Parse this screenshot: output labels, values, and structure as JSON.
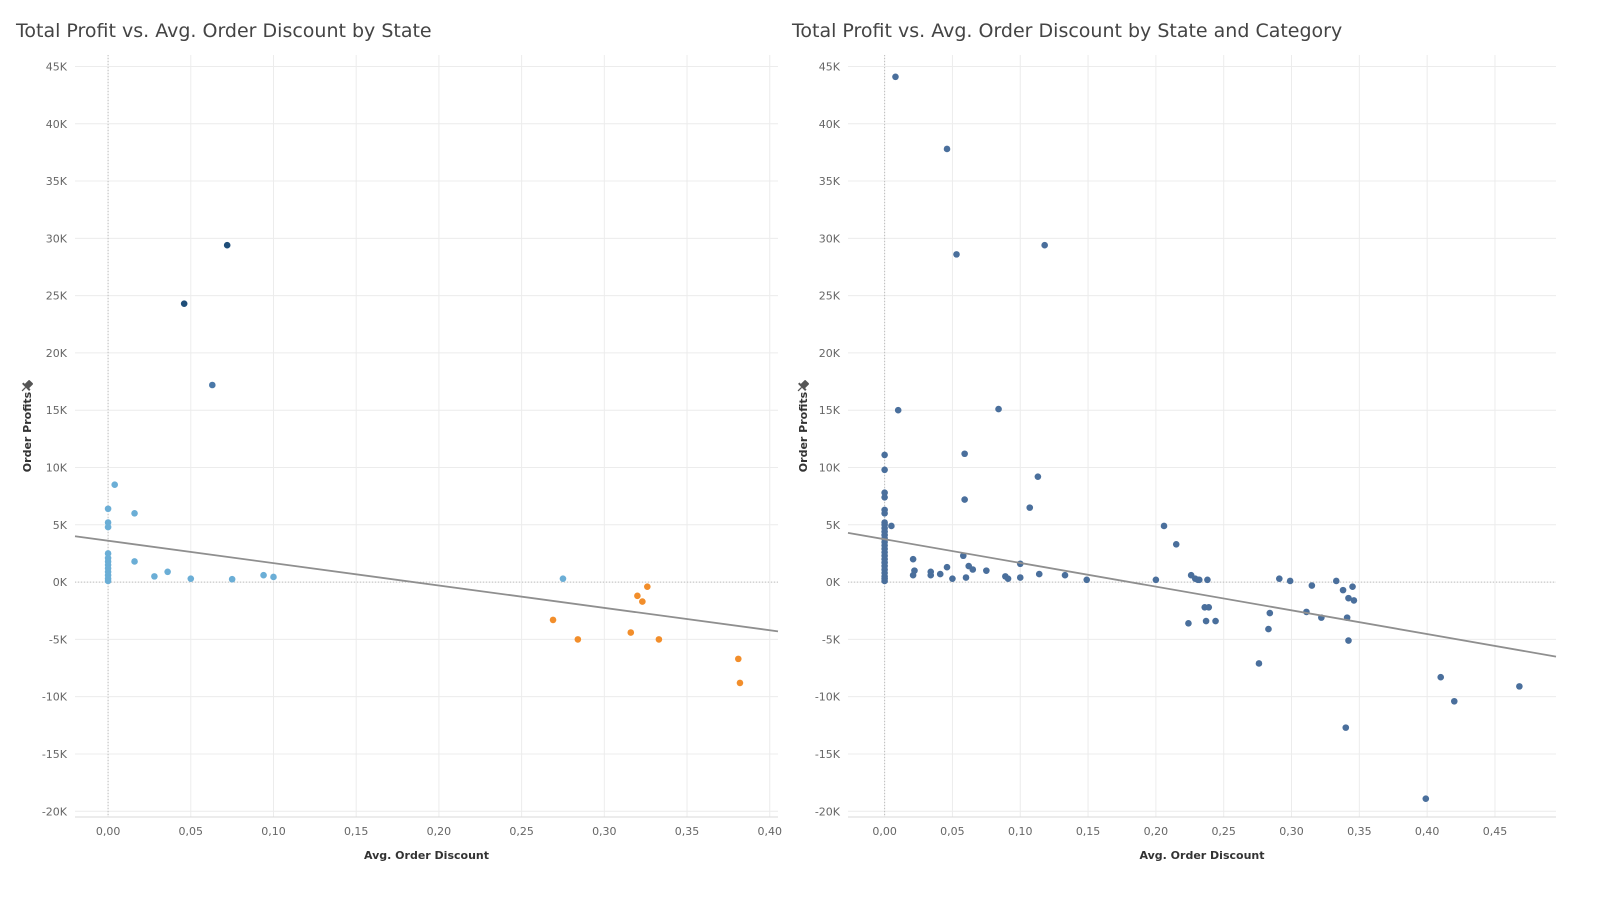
{
  "chart_data": [
    {
      "type": "scatter",
      "title": "Total Profit vs. Avg. Order Discount by State",
      "xlabel": "Avg. Order Discount",
      "ylabel": "Order Profits",
      "xlim": [
        -0.02,
        0.405
      ],
      "ylim": [
        -20500,
        46000
      ],
      "xticks": [
        "0,00",
        "0,05",
        "0,10",
        "0,15",
        "0,20",
        "0,25",
        "0,30",
        "0,35",
        "0,40"
      ],
      "xtick_values": [
        0,
        0.05,
        0.1,
        0.15,
        0.2,
        0.25,
        0.3,
        0.35,
        0.4
      ],
      "yticks": [
        "-20K",
        "-15K",
        "-10K",
        "-5K",
        "0K",
        "5K",
        "10K",
        "15K",
        "20K",
        "25K",
        "30K",
        "35K",
        "40K",
        "45K"
      ],
      "ytick_values": [
        -20000,
        -15000,
        -10000,
        -5000,
        0,
        5000,
        10000,
        15000,
        20000,
        25000,
        30000,
        35000,
        40000,
        45000
      ],
      "trend": {
        "x": [
          -0.02,
          0.405
        ],
        "y": [
          4000,
          -4300
        ],
        "color": "#8f8f8f"
      },
      "grid": true,
      "series": [
        {
          "color": "#1f4e79",
          "points": [
            [
              0.046,
              24300
            ],
            [
              0.072,
              29400
            ]
          ]
        },
        {
          "color": "#4a78a8",
          "points": [
            [
              0.063,
              17200
            ]
          ]
        },
        {
          "color": "#6baed6",
          "points": [
            [
              0.0,
              6400
            ],
            [
              0.0,
              5200
            ],
            [
              0.0,
              4800
            ],
            [
              0.0,
              2500
            ],
            [
              0.0,
              2100
            ],
            [
              0.0,
              1800
            ],
            [
              0.0,
              1500
            ],
            [
              0.0,
              1200
            ],
            [
              0.0,
              900
            ],
            [
              0.0,
              600
            ],
            [
              0.0,
              300
            ],
            [
              0.0,
              100
            ],
            [
              0.004,
              8500
            ],
            [
              0.016,
              6000
            ],
            [
              0.016,
              1800
            ],
            [
              0.028,
              500
            ],
            [
              0.036,
              900
            ],
            [
              0.05,
              300
            ],
            [
              0.075,
              250
            ],
            [
              0.094,
              600
            ],
            [
              0.1,
              450
            ],
            [
              0.275,
              300
            ]
          ]
        },
        {
          "color": "#f28e2b",
          "points": [
            [
              0.269,
              -3300
            ],
            [
              0.284,
              -5000
            ],
            [
              0.316,
              -4400
            ],
            [
              0.32,
              -1200
            ],
            [
              0.323,
              -1700
            ],
            [
              0.326,
              -400
            ],
            [
              0.333,
              -5000
            ],
            [
              0.381,
              -6700
            ],
            [
              0.382,
              -8800
            ]
          ]
        }
      ]
    },
    {
      "type": "scatter",
      "title": "Total Profit vs. Avg. Order Discount by State and Category",
      "xlabel": "Avg. Order Discount",
      "ylabel": "Order Profits",
      "xlim": [
        -0.027,
        0.495
      ],
      "ylim": [
        -20500,
        46000
      ],
      "xticks": [
        "0,00",
        "0,05",
        "0,10",
        "0,15",
        "0,20",
        "0,25",
        "0,30",
        "0,35",
        "0,40",
        "0,45"
      ],
      "xtick_values": [
        0,
        0.05,
        0.1,
        0.15,
        0.2,
        0.25,
        0.3,
        0.35,
        0.4,
        0.45
      ],
      "yticks": [
        "-20K",
        "-15K",
        "-10K",
        "-5K",
        "0K",
        "5K",
        "10K",
        "15K",
        "20K",
        "25K",
        "30K",
        "35K",
        "40K",
        "45K"
      ],
      "ytick_values": [
        -20000,
        -15000,
        -10000,
        -5000,
        0,
        5000,
        10000,
        15000,
        20000,
        25000,
        30000,
        35000,
        40000,
        45000
      ],
      "trend": {
        "x": [
          -0.027,
          0.495
        ],
        "y": [
          4300,
          -6500
        ],
        "color": "#8f8f8f"
      },
      "grid": true,
      "series": [
        {
          "color": "#4a6f9c",
          "points": [
            [
              0.008,
              44100
            ],
            [
              0.046,
              37800
            ],
            [
              0.053,
              28600
            ],
            [
              0.118,
              29400
            ],
            [
              0.01,
              15000
            ],
            [
              0.084,
              15100
            ],
            [
              0.0,
              11100
            ],
            [
              0.059,
              11200
            ],
            [
              0.0,
              9800
            ],
            [
              0.113,
              9200
            ],
            [
              0.0,
              7800
            ],
            [
              0.0,
              7400
            ],
            [
              0.059,
              7200
            ],
            [
              0.107,
              6500
            ],
            [
              0.0,
              6300
            ],
            [
              0.0,
              6000
            ],
            [
              0.0,
              5200
            ],
            [
              0.0,
              5000
            ],
            [
              0.0,
              4700
            ],
            [
              0.005,
              4900
            ],
            [
              0.0,
              4400
            ],
            [
              0.0,
              4100
            ],
            [
              0.0,
              3800
            ],
            [
              0.0,
              3500
            ],
            [
              0.0,
              3200
            ],
            [
              0.0,
              2900
            ],
            [
              0.0,
              2600
            ],
            [
              0.0,
              2300
            ],
            [
              0.0,
              2000
            ],
            [
              0.0,
              1700
            ],
            [
              0.0,
              1400
            ],
            [
              0.0,
              1100
            ],
            [
              0.0,
              800
            ],
            [
              0.0,
              500
            ],
            [
              0.0,
              300
            ],
            [
              0.0,
              100
            ],
            [
              0.021,
              2000
            ],
            [
              0.022,
              1000
            ],
            [
              0.021,
              600
            ],
            [
              0.034,
              900
            ],
            [
              0.034,
              600
            ],
            [
              0.041,
              700
            ],
            [
              0.046,
              1300
            ],
            [
              0.05,
              300
            ],
            [
              0.058,
              2300
            ],
            [
              0.062,
              1400
            ],
            [
              0.06,
              400
            ],
            [
              0.065,
              1100
            ],
            [
              0.075,
              1000
            ],
            [
              0.089,
              500
            ],
            [
              0.091,
              300
            ],
            [
              0.1,
              1600
            ],
            [
              0.1,
              400
            ],
            [
              0.114,
              700
            ],
            [
              0.133,
              600
            ],
            [
              0.149,
              200
            ],
            [
              0.2,
              200
            ],
            [
              0.206,
              4900
            ],
            [
              0.215,
              3300
            ],
            [
              0.224,
              -3600
            ],
            [
              0.226,
              600
            ],
            [
              0.229,
              300
            ],
            [
              0.231,
              200
            ],
            [
              0.232,
              200
            ],
            [
              0.236,
              -2200
            ],
            [
              0.237,
              -3400
            ],
            [
              0.238,
              200
            ],
            [
              0.239,
              -2200
            ],
            [
              0.244,
              -3400
            ],
            [
              0.276,
              -7100
            ],
            [
              0.283,
              -4100
            ],
            [
              0.284,
              -2700
            ],
            [
              0.291,
              300
            ],
            [
              0.299,
              100
            ],
            [
              0.311,
              -2600
            ],
            [
              0.315,
              -300
            ],
            [
              0.322,
              -3100
            ],
            [
              0.333,
              100
            ],
            [
              0.338,
              -700
            ],
            [
              0.34,
              -12700
            ],
            [
              0.341,
              -3100
            ],
            [
              0.342,
              -1400
            ],
            [
              0.342,
              -5100
            ],
            [
              0.345,
              -400
            ],
            [
              0.346,
              -1600
            ],
            [
              0.399,
              -18900
            ],
            [
              0.41,
              -8300
            ],
            [
              0.42,
              -10400
            ],
            [
              0.468,
              -9100
            ]
          ]
        }
      ]
    }
  ]
}
